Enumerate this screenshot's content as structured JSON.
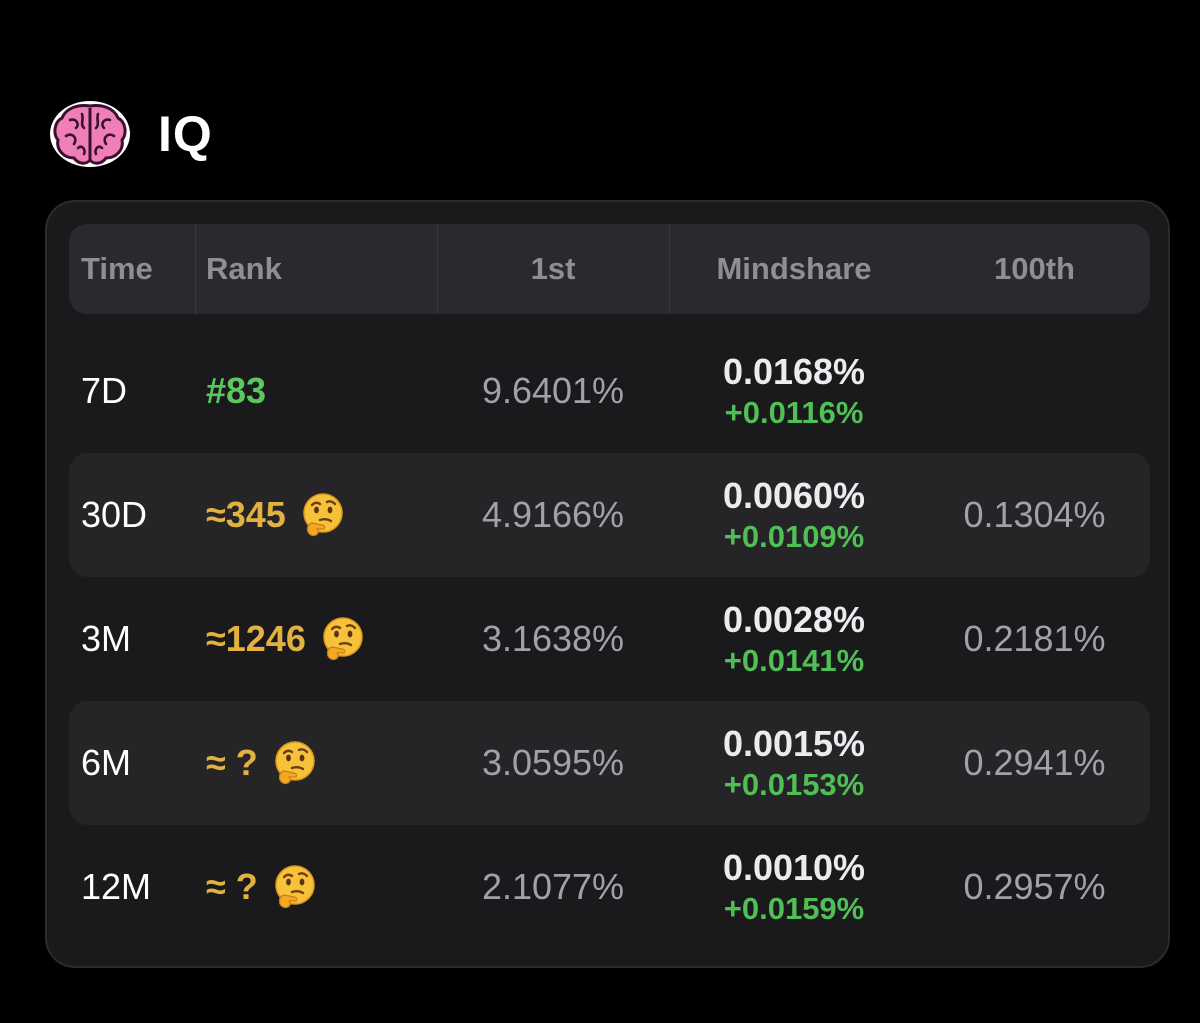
{
  "header": {
    "title": "IQ",
    "icon": "brain-icon"
  },
  "table": {
    "headers": {
      "time": "Time",
      "rank": "Rank",
      "first": "1st",
      "mindshare": "Mindshare",
      "hundredth": "100th"
    },
    "rows": [
      {
        "time": "7D",
        "rank": "#83",
        "rank_style": "green",
        "rank_icon": "",
        "first": "9.6401%",
        "mindshare": "0.0168%",
        "change": "+0.0116%",
        "hundredth": ""
      },
      {
        "time": "30D",
        "rank": "≈345",
        "rank_style": "gold",
        "rank_icon": "thinking-face-icon",
        "first": "4.9166%",
        "mindshare": "0.0060%",
        "change": "+0.0109%",
        "hundredth": "0.1304%"
      },
      {
        "time": "3M",
        "rank": "≈1246",
        "rank_style": "gold",
        "rank_icon": "thinking-face-icon",
        "first": "3.1638%",
        "mindshare": "0.0028%",
        "change": "+0.0141%",
        "hundredth": "0.2181%"
      },
      {
        "time": "6M",
        "rank": "≈ ?",
        "rank_style": "gold",
        "rank_icon": "thinking-face-icon",
        "first": "3.0595%",
        "mindshare": "0.0015%",
        "change": "+0.0153%",
        "hundredth": "0.2941%"
      },
      {
        "time": "12M",
        "rank": "≈ ?",
        "rank_style": "gold",
        "rank_icon": "thinking-face-icon",
        "first": "2.1077%",
        "mindshare": "0.0010%",
        "change": "+0.0159%",
        "hundredth": "0.2957%"
      }
    ]
  },
  "colors": {
    "background": "#000000",
    "card": "#1a1a1d",
    "header_row": "#2a2a2e",
    "alt_row": "#252528",
    "rank_green": "#5ac85f",
    "rank_gold": "#e3b13f",
    "delta_green": "#4fbf56"
  }
}
